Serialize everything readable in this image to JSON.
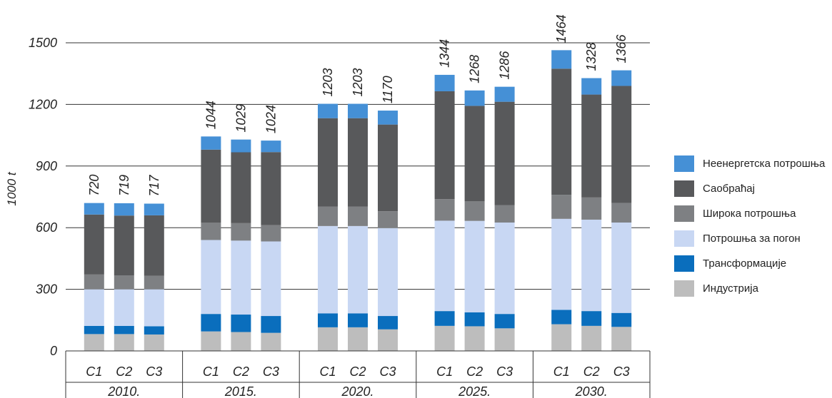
{
  "chart_data": {
    "type": "bar",
    "stacked": true,
    "ylabel": "1000 t",
    "ylim": [
      0,
      1500
    ],
    "yticks": [
      0,
      300,
      600,
      900,
      1200,
      1500
    ],
    "grid": true,
    "legend_position": "right",
    "groups": [
      "2010.",
      "2015.",
      "2020.",
      "2025.",
      "2030."
    ],
    "scenarios": [
      "C1",
      "C2",
      "C3"
    ],
    "categories": [
      "2010. C1",
      "2010. C2",
      "2010. C3",
      "2015. C1",
      "2015. C2",
      "2015. C3",
      "2020. C1",
      "2020. C2",
      "2020. C3",
      "2025. C1",
      "2025. C2",
      "2025. C3",
      "2030. C1",
      "2030. C2",
      "2030. C3"
    ],
    "totals": [
      720,
      719,
      717,
      1044,
      1029,
      1024,
      1203,
      1203,
      1170,
      1344,
      1268,
      1286,
      1464,
      1328,
      1366
    ],
    "series": [
      {
        "name": "Индустрија",
        "color": "#bdbdbd",
        "values": [
          82,
          82,
          80,
          95,
          92,
          88,
          115,
          115,
          105,
          122,
          120,
          110,
          130,
          122,
          117
        ]
      },
      {
        "name": "Трансформације",
        "color": "#0a6ebd",
        "values": [
          40,
          40,
          40,
          85,
          85,
          82,
          68,
          68,
          65,
          72,
          68,
          70,
          70,
          72,
          68
        ]
      },
      {
        "name": "Потрошња за погон",
        "color": "#c8d7f3",
        "values": [
          178,
          178,
          180,
          360,
          360,
          363,
          425,
          425,
          428,
          440,
          445,
          445,
          443,
          445,
          440
        ]
      },
      {
        "name": "Широка потрошња",
        "color": "#7e8083",
        "values": [
          72,
          68,
          66,
          85,
          85,
          80,
          95,
          95,
          82,
          105,
          95,
          85,
          117,
          108,
          95
        ]
      },
      {
        "name": "Саобраћај",
        "color": "#58595b",
        "values": [
          292,
          291,
          294,
          355,
          345,
          355,
          430,
          430,
          422,
          525,
          465,
          503,
          614,
          501,
          570
        ]
      },
      {
        "name": "Неенергетска потрошња",
        "color": "#4590d6",
        "values": [
          56,
          60,
          57,
          64,
          62,
          56,
          70,
          70,
          68,
          80,
          75,
          73,
          90,
          80,
          76
        ]
      }
    ]
  }
}
